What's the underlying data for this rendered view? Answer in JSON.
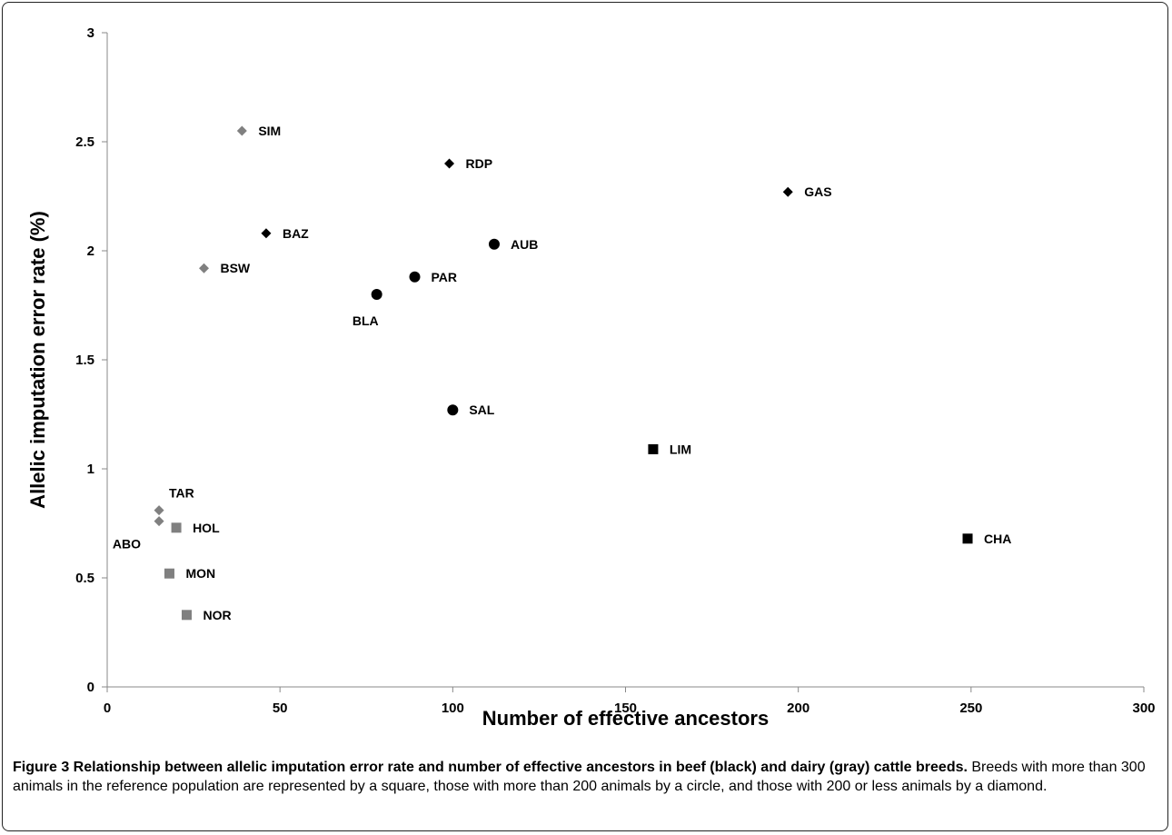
{
  "chart_data": {
    "type": "scatter",
    "xlabel": "Number of effective ancestors",
    "ylabel": "Allelic imputation  error rate (%)",
    "xlim": [
      0,
      300
    ],
    "ylim": [
      0,
      3
    ],
    "xticks": [
      0,
      50,
      100,
      150,
      200,
      250,
      300
    ],
    "yticks": [
      0,
      0.5,
      1,
      1.5,
      2,
      2.5,
      3
    ],
    "ytick_labels": [
      "0",
      "0.5",
      "1",
      "1.5",
      "2",
      "2.5",
      "3"
    ],
    "grid": false,
    "colors": {
      "beef": "#000000",
      "dairy": "#808080"
    },
    "points": [
      {
        "label": "SIM",
        "x": 39,
        "y": 2.55,
        "shape": "diamond",
        "color": "dairy",
        "label_pos": "right"
      },
      {
        "label": "RDP",
        "x": 99,
        "y": 2.4,
        "shape": "diamond",
        "color": "beef",
        "label_pos": "right"
      },
      {
        "label": "GAS",
        "x": 197,
        "y": 2.27,
        "shape": "diamond",
        "color": "beef",
        "label_pos": "right"
      },
      {
        "label": "BAZ",
        "x": 46,
        "y": 2.08,
        "shape": "diamond",
        "color": "beef",
        "label_pos": "right"
      },
      {
        "label": "AUB",
        "x": 112,
        "y": 2.03,
        "shape": "circle",
        "color": "beef",
        "label_pos": "right"
      },
      {
        "label": "BSW",
        "x": 28,
        "y": 1.92,
        "shape": "diamond",
        "color": "dairy",
        "label_pos": "right"
      },
      {
        "label": "PAR",
        "x": 89,
        "y": 1.88,
        "shape": "circle",
        "color": "beef",
        "label_pos": "right"
      },
      {
        "label": "BLA",
        "x": 78,
        "y": 1.8,
        "shape": "circle",
        "color": "beef",
        "label_pos": "below-left"
      },
      {
        "label": "SAL",
        "x": 100,
        "y": 1.27,
        "shape": "circle",
        "color": "beef",
        "label_pos": "right"
      },
      {
        "label": "LIM",
        "x": 158,
        "y": 1.09,
        "shape": "square",
        "color": "beef",
        "label_pos": "right"
      },
      {
        "label": "TAR",
        "x": 15,
        "y": 0.81,
        "shape": "diamond",
        "color": "dairy",
        "label_pos": "above-right"
      },
      {
        "label": "ABO",
        "x": 15,
        "y": 0.76,
        "shape": "diamond",
        "color": "dairy",
        "label_pos": "below-left"
      },
      {
        "label": "HOL",
        "x": 20,
        "y": 0.73,
        "shape": "square",
        "color": "dairy",
        "label_pos": "right"
      },
      {
        "label": "CHA",
        "x": 249,
        "y": 0.68,
        "shape": "square",
        "color": "beef",
        "label_pos": "right"
      },
      {
        "label": "MON",
        "x": 18,
        "y": 0.52,
        "shape": "square",
        "color": "dairy",
        "label_pos": "right"
      },
      {
        "label": "NOR",
        "x": 23,
        "y": 0.33,
        "shape": "square",
        "color": "dairy",
        "label_pos": "right"
      }
    ]
  },
  "caption": {
    "title": "Figure 3 Relationship between allelic imputation error rate and number of effective ancestors in beef (black) and dairy (gray) cattle breeds.",
    "text": " Breeds with more than 300 animals in the reference population are represented by a square, those with more than 200 animals by a circle, and those with 200 or less animals by a diamond."
  }
}
